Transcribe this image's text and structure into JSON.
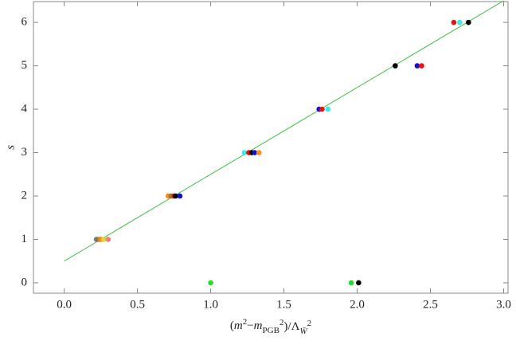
{
  "chart_data": {
    "type": "scatter",
    "xlabel": [
      "(",
      "m",
      "2",
      "−",
      "m",
      "PGB",
      "2",
      ")/Λ",
      "W̄",
      "2"
    ],
    "ylabel": "s",
    "xlim": [
      -0.21,
      3.03
    ],
    "ylim": [
      -0.24,
      6.48
    ],
    "xticks": [
      {
        "value": 0,
        "label": "0.0"
      },
      0.5,
      {
        "value": 1,
        "label": "1.0"
      },
      1.5,
      {
        "value": 2,
        "label": "2.0"
      },
      2.5,
      {
        "value": 3,
        "label": "3.0"
      }
    ],
    "yticks": [
      0,
      1,
      2,
      3,
      4,
      5,
      6
    ],
    "line": {
      "color": "#3ec43e",
      "x": [
        0,
        3
      ],
      "y": [
        0.5,
        6.5
      ]
    },
    "points": [
      {
        "x": 1.0,
        "y": 0,
        "color": "#22dd22"
      },
      {
        "x": 1.96,
        "y": 0,
        "color": "#22dd22"
      },
      {
        "x": 2.01,
        "y": 0,
        "color": "#000000"
      },
      {
        "x": 0.22,
        "y": 1,
        "color": "#777777"
      },
      {
        "x": 0.24,
        "y": 1,
        "color": "#9a7a30"
      },
      {
        "x": 0.25,
        "y": 1,
        "color": "#ff8c1a"
      },
      {
        "x": 0.27,
        "y": 1,
        "color": "#d8d830"
      },
      {
        "x": 0.3,
        "y": 1,
        "color": "#f08080"
      },
      {
        "x": 0.71,
        "y": 2,
        "color": "#ff8c1a"
      },
      {
        "x": 0.73,
        "y": 2,
        "color": "#9a7a30"
      },
      {
        "x": 0.75,
        "y": 2,
        "color": "#ee1111"
      },
      {
        "x": 0.76,
        "y": 2,
        "color": "#000000"
      },
      {
        "x": 0.79,
        "y": 2,
        "color": "#1111cc"
      },
      {
        "x": 1.23,
        "y": 3,
        "color": "#33eeee"
      },
      {
        "x": 1.26,
        "y": 3,
        "color": "#ee1111"
      },
      {
        "x": 1.28,
        "y": 3,
        "color": "#000000"
      },
      {
        "x": 1.3,
        "y": 3,
        "color": "#1111cc"
      },
      {
        "x": 1.33,
        "y": 3,
        "color": "#ff8c1a"
      },
      {
        "x": 1.74,
        "y": 4,
        "color": "#1111cc"
      },
      {
        "x": 1.76,
        "y": 4,
        "color": "#ee1111"
      },
      {
        "x": 1.8,
        "y": 4,
        "color": "#33eeee"
      },
      {
        "x": 2.26,
        "y": 5,
        "color": "#000000"
      },
      {
        "x": 2.41,
        "y": 5,
        "color": "#1111cc"
      },
      {
        "x": 2.44,
        "y": 5,
        "color": "#ee1111"
      },
      {
        "x": 2.66,
        "y": 6,
        "color": "#ee1111"
      },
      {
        "x": 2.7,
        "y": 6,
        "color": "#33eeee"
      },
      {
        "x": 2.76,
        "y": 6,
        "color": "#000000"
      }
    ]
  }
}
